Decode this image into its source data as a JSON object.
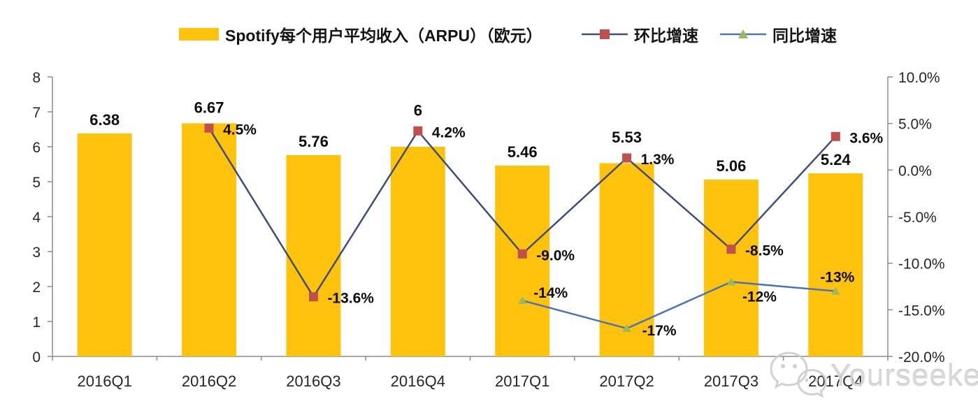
{
  "legend": {
    "items": [
      {
        "label": "Spotify每个用户平均收入（ARPU）（欧元）",
        "marker": "bar-swatch"
      },
      {
        "label": "环比增速",
        "marker": "line-square"
      },
      {
        "label": "同比增速",
        "marker": "line-triangle"
      }
    ]
  },
  "watermark": {
    "text": "Yourseeker",
    "icon": "wechat-icon"
  },
  "colors": {
    "bar": "#FFC20D",
    "qoq_line": "#3C4E79",
    "qoq_marker": "#C0504D",
    "yoy_line": "#4A74B8",
    "yoy_marker": "#9BBB59",
    "axis": "#8C8C8C",
    "text": "#0D0D0D",
    "watermark": "#D4D4D4"
  },
  "chart_data": {
    "type": "bar+line combo",
    "title": "Spotify每个用户平均收入（ARPU）（欧元）",
    "legend_position": "top",
    "grid": false,
    "categories": [
      "2016Q1",
      "2016Q2",
      "2016Q3",
      "2016Q4",
      "2017Q1",
      "2017Q2",
      "2017Q3",
      "2017Q4"
    ],
    "series": [
      {
        "name": "Spotify每个用户平均收入（ARPU）（欧元）",
        "type": "bar",
        "axis": "left",
        "values": [
          6.38,
          6.67,
          5.76,
          6,
          5.46,
          5.53,
          5.06,
          5.24
        ],
        "labels": [
          "6.38",
          "6.67",
          "5.76",
          "6",
          "5.46",
          "5.53",
          "5.06",
          "5.24"
        ]
      },
      {
        "name": "环比增速",
        "type": "line",
        "axis": "right",
        "marker": "square",
        "values": [
          null,
          4.5,
          -13.6,
          4.2,
          -9.0,
          1.3,
          -8.5,
          3.6
        ],
        "labels": [
          null,
          "4.5%",
          "-13.6%",
          "4.2%",
          "-9.0%",
          "1.3%",
          "-8.5%",
          "3.6%"
        ]
      },
      {
        "name": "同比增速",
        "type": "line",
        "axis": "right",
        "marker": "triangle",
        "values": [
          null,
          null,
          null,
          null,
          -14,
          -17,
          -12,
          -13
        ],
        "labels": [
          null,
          null,
          null,
          null,
          "-14%",
          "-17%",
          "-12%",
          "-13%"
        ]
      }
    ],
    "left_axis": {
      "min": 0,
      "max": 8,
      "step": 1,
      "tick_labels": [
        "0",
        "1",
        "2",
        "3",
        "4",
        "5",
        "6",
        "7",
        "8"
      ]
    },
    "right_axis": {
      "min": -20,
      "max": 10,
      "step": 5,
      "tick_labels": [
        "-20.0%",
        "-15.0%",
        "-10.0%",
        "-5.0%",
        "0.0%",
        "5.0%",
        "10.0%"
      ]
    }
  }
}
